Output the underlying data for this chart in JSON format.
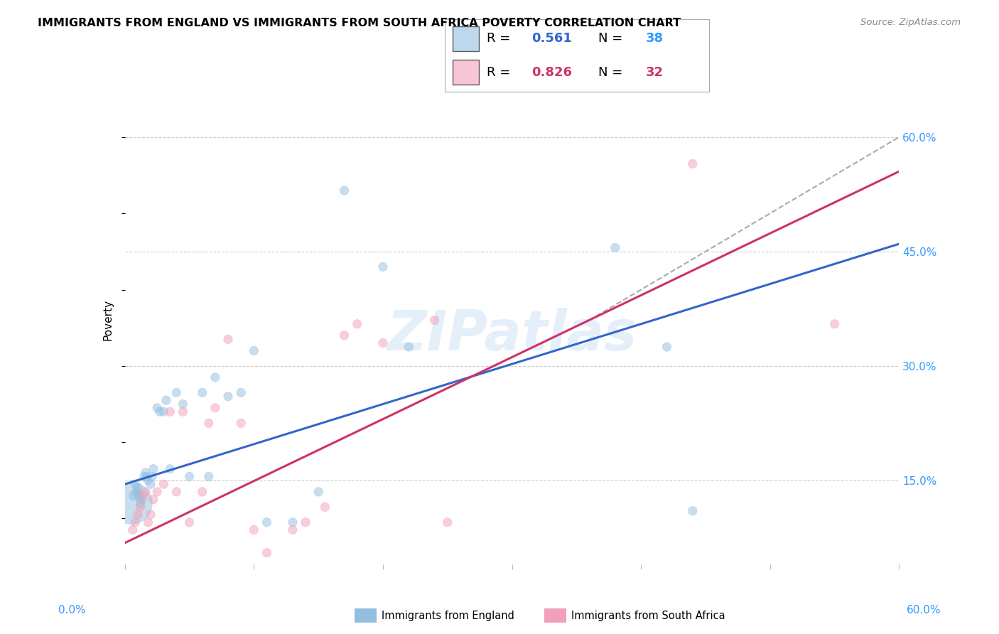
{
  "title": "IMMIGRANTS FROM ENGLAND VS IMMIGRANTS FROM SOUTH AFRICA POVERTY CORRELATION CHART",
  "source": "Source: ZipAtlas.com",
  "ylabel": "Poverty",
  "watermark": "ZIPatlas",
  "blue_color": "#92bfe0",
  "pink_color": "#f0a0b8",
  "blue_line_color": "#3366cc",
  "pink_line_color": "#cc3366",
  "dashed_line_color": "#aaaaaa",
  "grid_color": "#cccccc",
  "xmin": 0.0,
  "xmax": 0.6,
  "ymin": 0.04,
  "ymax": 0.68,
  "ytick_vals": [
    0.15,
    0.3,
    0.45,
    0.6
  ],
  "ytick_labels": [
    "15.0%",
    "30.0%",
    "45.0%",
    "60.0%"
  ],
  "xtick_vals": [
    0.0,
    0.1,
    0.2,
    0.3,
    0.4,
    0.5,
    0.6
  ],
  "england_scatter_x": [
    0.005,
    0.007,
    0.008,
    0.009,
    0.01,
    0.011,
    0.012,
    0.013,
    0.015,
    0.016,
    0.017,
    0.018,
    0.02,
    0.021,
    0.022,
    0.025,
    0.027,
    0.03,
    0.032,
    0.035,
    0.04,
    0.045,
    0.05,
    0.06,
    0.065,
    0.07,
    0.08,
    0.09,
    0.1,
    0.11,
    0.13,
    0.15,
    0.17,
    0.2,
    0.22,
    0.38,
    0.42,
    0.44
  ],
  "england_scatter_y": [
    0.12,
    0.13,
    0.145,
    0.135,
    0.14,
    0.13,
    0.12,
    0.125,
    0.155,
    0.16,
    0.155,
    0.15,
    0.145,
    0.155,
    0.165,
    0.245,
    0.24,
    0.24,
    0.255,
    0.165,
    0.265,
    0.25,
    0.155,
    0.265,
    0.155,
    0.285,
    0.26,
    0.265,
    0.32,
    0.095,
    0.095,
    0.135,
    0.53,
    0.43,
    0.325,
    0.455,
    0.325,
    0.11
  ],
  "england_scatter_size": [
    1800,
    100,
    80,
    80,
    80,
    80,
    80,
    80,
    80,
    80,
    80,
    80,
    80,
    80,
    80,
    80,
    80,
    80,
    80,
    80,
    80,
    80,
    80,
    80,
    80,
    80,
    80,
    80,
    80,
    80,
    80,
    80,
    80,
    80,
    80,
    80,
    80,
    80
  ],
  "sa_scatter_x": [
    0.006,
    0.008,
    0.01,
    0.012,
    0.014,
    0.016,
    0.018,
    0.02,
    0.022,
    0.025,
    0.03,
    0.035,
    0.04,
    0.045,
    0.05,
    0.06,
    0.065,
    0.07,
    0.08,
    0.09,
    0.1,
    0.11,
    0.13,
    0.14,
    0.155,
    0.17,
    0.18,
    0.2,
    0.24,
    0.25,
    0.44,
    0.55
  ],
  "sa_scatter_y": [
    0.085,
    0.095,
    0.105,
    0.115,
    0.13,
    0.135,
    0.095,
    0.105,
    0.125,
    0.135,
    0.145,
    0.24,
    0.135,
    0.24,
    0.095,
    0.135,
    0.225,
    0.245,
    0.335,
    0.225,
    0.085,
    0.055,
    0.085,
    0.095,
    0.115,
    0.34,
    0.355,
    0.33,
    0.36,
    0.095,
    0.565,
    0.355
  ],
  "sa_scatter_size": [
    80,
    80,
    80,
    80,
    80,
    80,
    80,
    80,
    80,
    80,
    80,
    80,
    80,
    80,
    80,
    80,
    80,
    80,
    80,
    80,
    80,
    80,
    80,
    80,
    80,
    80,
    80,
    80,
    80,
    80,
    80,
    80
  ],
  "england_line_x": [
    0.0,
    0.6
  ],
  "england_line_y": [
    0.145,
    0.46
  ],
  "sa_line_x": [
    0.0,
    0.6
  ],
  "sa_line_y": [
    0.068,
    0.555
  ],
  "diag_line_x": [
    0.36,
    0.6
  ],
  "diag_line_y": [
    0.36,
    0.6
  ],
  "legend_R1": "0.561",
  "legend_N1": "38",
  "legend_R2": "0.826",
  "legend_N2": "32",
  "R_color": "#3366cc",
  "N1_color": "#3399ff",
  "N2_color": "#cc3366"
}
